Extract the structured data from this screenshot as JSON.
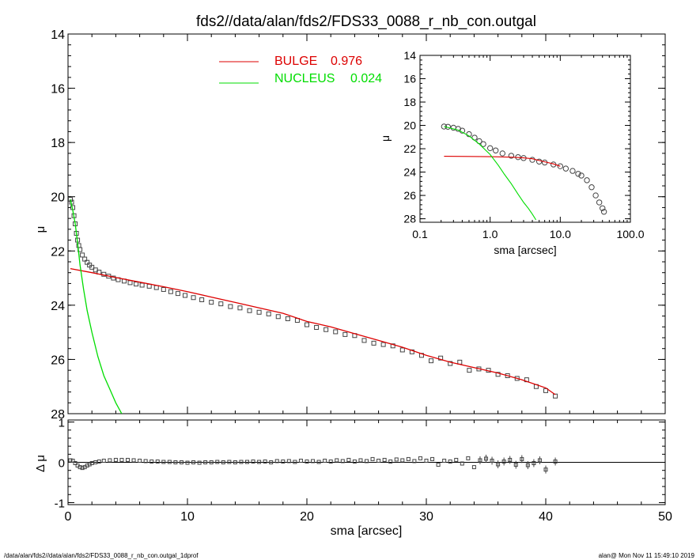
{
  "colors": {
    "bulge": "#dd0000",
    "nucleus": "#00dd00",
    "data": "#444444",
    "axis": "#000000"
  },
  "footer": {
    "left": "/data/alan/fds2//data/alan/fds2/FDS33_0088_r_nb_con.outgal_1dprof",
    "right": "alan@  Mon Nov 11 15:49:10 2019"
  },
  "chart_data": [
    {
      "type": "scatter",
      "panel": "main",
      "title": "fds2//data/alan/fds2/FDS33_0088_r_nb_con.outgal",
      "xlabel": "",
      "ylabel": "μ",
      "xlim": [
        0,
        50
      ],
      "ylim": [
        28,
        14
      ],
      "x_tick_labels": [],
      "y_ticks": [
        14,
        16,
        18,
        20,
        22,
        24,
        26,
        28
      ],
      "legend": [
        {
          "name": "BULGE",
          "value": "0.976",
          "color": "#dd0000"
        },
        {
          "name": "NUCLEUS",
          "value": "0.024",
          "color": "#00dd00"
        }
      ],
      "series": [
        {
          "name": "data",
          "style": "squares",
          "x": [
            0.2,
            0.3,
            0.4,
            0.5,
            0.6,
            0.7,
            0.8,
            0.9,
            1.0,
            1.2,
            1.4,
            1.6,
            1.8,
            2.0,
            2.3,
            2.6,
            3.0,
            3.4,
            3.8,
            4.2,
            4.7,
            5.2,
            5.7,
            6.2,
            6.8,
            7.4,
            8.0,
            8.6,
            9.2,
            9.8,
            10.5,
            11.2,
            12.0,
            12.8,
            13.6,
            14.4,
            15.2,
            16.0,
            16.8,
            17.6,
            18.4,
            19.2,
            20.0,
            20.8,
            21.6,
            22.4,
            23.2,
            24.0,
            24.8,
            25.6,
            26.4,
            27.2,
            28.0,
            28.8,
            29.6,
            30.4,
            31.2,
            32.0,
            32.8,
            33.6,
            34.4,
            35.2,
            36.0,
            36.8,
            37.6,
            38.4,
            39.2,
            40.0,
            40.8
          ],
          "y": [
            20.1,
            20.2,
            20.4,
            20.7,
            21.0,
            21.35,
            21.6,
            21.8,
            21.95,
            22.15,
            22.3,
            22.42,
            22.52,
            22.6,
            22.7,
            22.78,
            22.86,
            22.93,
            23.0,
            23.06,
            23.11,
            23.17,
            23.22,
            23.26,
            23.3,
            23.35,
            23.42,
            23.5,
            23.57,
            23.64,
            23.72,
            23.8,
            23.89,
            23.95,
            24.05,
            24.1,
            24.2,
            24.26,
            24.32,
            24.42,
            24.5,
            24.56,
            24.72,
            24.82,
            24.9,
            24.98,
            25.08,
            25.12,
            25.3,
            25.4,
            25.45,
            25.5,
            25.65,
            25.72,
            25.85,
            26.05,
            25.95,
            26.15,
            26.1,
            26.4,
            26.35,
            26.4,
            26.55,
            26.6,
            26.7,
            26.75,
            27.0,
            27.15,
            27.35
          ]
        },
        {
          "name": "BULGE",
          "style": "line",
          "color": "#dd0000",
          "x": [
            0.2,
            2,
            4,
            6,
            8,
            10,
            12,
            14,
            16,
            18,
            20,
            22,
            24,
            26,
            28,
            30,
            32,
            34,
            36,
            38,
            40,
            40.8
          ],
          "y": [
            22.65,
            22.8,
            22.98,
            23.15,
            23.32,
            23.5,
            23.7,
            23.9,
            24.1,
            24.3,
            24.6,
            24.8,
            25.05,
            25.3,
            25.55,
            25.85,
            26.1,
            26.3,
            26.5,
            26.75,
            27.05,
            27.3
          ]
        },
        {
          "name": "NUCLEUS",
          "style": "line",
          "color": "#00dd00",
          "x": [
            0.2,
            0.4,
            0.6,
            0.8,
            1.0,
            1.3,
            1.6,
            2.0,
            2.5,
            3.0,
            3.5,
            4.0,
            4.5
          ],
          "y": [
            20.1,
            20.5,
            21.0,
            21.7,
            22.5,
            23.4,
            24.2,
            25.0,
            25.9,
            26.6,
            27.1,
            27.6,
            28.0
          ]
        }
      ]
    },
    {
      "type": "scatter",
      "panel": "inset",
      "xlabel": "sma [arcsec]",
      "ylabel": "μ",
      "x_scale": "log",
      "xlim": [
        0.1,
        100
      ],
      "ylim": [
        28.3,
        14
      ],
      "x_ticks": [
        0.1,
        1,
        10,
        100
      ],
      "x_tick_labels": [
        "0.1",
        "1.0",
        "10.0",
        "100.0"
      ],
      "y_ticks": [
        14,
        16,
        18,
        20,
        22,
        24,
        26,
        28
      ],
      "series": [
        {
          "name": "data",
          "style": "circles",
          "x": [
            0.22,
            0.25,
            0.3,
            0.35,
            0.4,
            0.5,
            0.6,
            0.7,
            0.8,
            1.0,
            1.2,
            1.5,
            2.0,
            2.5,
            3.0,
            4.0,
            5.0,
            6.0,
            8.0,
            10,
            12,
            15,
            18,
            20,
            24,
            28,
            32,
            36,
            40,
            42
          ],
          "y": [
            20.1,
            20.12,
            20.2,
            20.3,
            20.45,
            20.75,
            21.05,
            21.35,
            21.6,
            21.95,
            22.15,
            22.4,
            22.6,
            22.72,
            22.8,
            22.95,
            23.1,
            23.18,
            23.35,
            23.5,
            23.7,
            23.9,
            24.15,
            24.3,
            24.7,
            25.3,
            26.0,
            26.6,
            27.1,
            27.4
          ]
        },
        {
          "name": "BULGE",
          "style": "line",
          "color": "#dd0000",
          "x": [
            0.22,
            0.5,
            1,
            2,
            3,
            4,
            6,
            8,
            10
          ],
          "y": [
            22.65,
            22.66,
            22.68,
            22.72,
            22.78,
            22.86,
            23.12,
            23.3,
            23.5
          ]
        },
        {
          "name": "NUCLEUS",
          "style": "line",
          "color": "#00dd00",
          "x": [
            0.22,
            0.35,
            0.5,
            0.7,
            1.0,
            1.3,
            1.6,
            2.0,
            2.5,
            3.0,
            3.5,
            4.0,
            4.5
          ],
          "y": [
            20.1,
            20.4,
            20.9,
            21.6,
            22.5,
            23.4,
            24.2,
            25.0,
            25.9,
            26.6,
            27.1,
            27.6,
            28.1
          ]
        }
      ]
    },
    {
      "type": "scatter",
      "panel": "residual",
      "xlabel": "sma [arcsec]",
      "ylabel": "Δ μ",
      "xlim": [
        0,
        50
      ],
      "ylim": [
        -1.05,
        1.05
      ],
      "x_ticks": [
        0,
        10,
        20,
        30,
        40,
        50
      ],
      "y_ticks": [
        -1,
        0,
        1
      ],
      "series": [
        {
          "name": "residual",
          "style": "squares",
          "x": [
            0.2,
            0.4,
            0.6,
            0.8,
            1.0,
            1.2,
            1.4,
            1.6,
            1.8,
            2.0,
            2.3,
            2.6,
            3.0,
            3.5,
            4.0,
            4.5,
            5.0,
            5.5,
            6.0,
            6.5,
            7.0,
            7.5,
            8.0,
            8.5,
            9.0,
            9.5,
            10,
            10.5,
            11,
            11.5,
            12,
            12.5,
            13,
            13.5,
            14,
            14.5,
            15,
            15.5,
            16,
            16.5,
            17,
            17.5,
            18,
            18.5,
            19,
            19.5,
            20,
            20.5,
            21,
            21.5,
            22,
            22.5,
            23,
            23.5,
            24,
            24.5,
            25,
            25.5,
            26,
            26.5,
            27,
            27.5,
            28,
            28.5,
            29,
            29.5,
            30,
            30.5,
            31,
            31.5,
            32,
            32.5,
            33,
            33.5,
            34,
            34.5,
            35,
            35.5,
            36,
            36.5,
            37,
            37.5,
            38,
            38.5,
            39,
            39.5,
            40,
            40.8
          ],
          "y": [
            0.05,
            0.04,
            -0.02,
            -0.08,
            -0.12,
            -0.14,
            -0.12,
            -0.08,
            -0.05,
            -0.02,
            0.0,
            0.02,
            0.04,
            0.05,
            0.06,
            0.06,
            0.06,
            0.05,
            0.04,
            0.03,
            0.02,
            0.02,
            0.01,
            0.01,
            0.0,
            0.0,
            -0.01,
            0.0,
            -0.01,
            0.0,
            0.0,
            0.01,
            0.0,
            0.01,
            0.0,
            0.01,
            0.01,
            0.02,
            0.01,
            0.02,
            0.0,
            0.03,
            0.02,
            0.03,
            0.01,
            0.04,
            0.02,
            0.03,
            0.01,
            0.04,
            0.02,
            0.05,
            0.03,
            0.06,
            0.02,
            0.05,
            0.03,
            0.08,
            0.04,
            0.06,
            0.02,
            0.07,
            0.05,
            0.08,
            0.03,
            0.1,
            0.04,
            0.08,
            -0.06,
            0.04,
            0.02,
            0.06,
            -0.03,
            0.1,
            -0.12,
            0.05,
            0.09,
            0.04,
            -0.05,
            0.02,
            0.06,
            -0.06,
            0.08,
            -0.07,
            -0.02,
            0.05,
            -0.18,
            0.02
          ]
        }
      ]
    }
  ]
}
